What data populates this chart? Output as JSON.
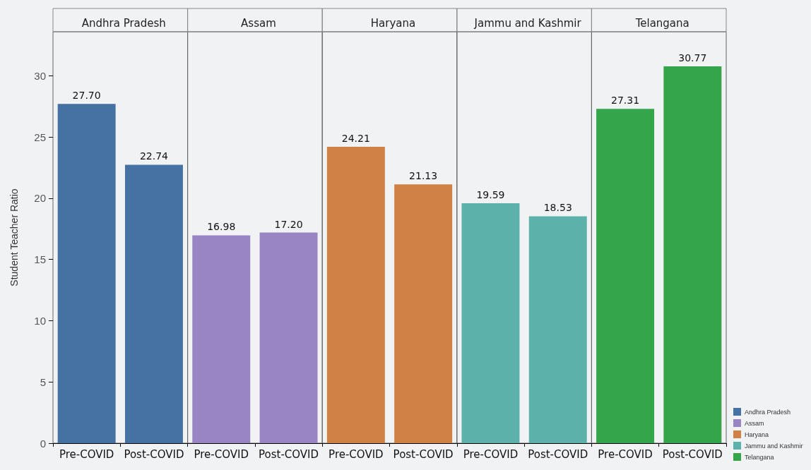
{
  "chart_data": [
    {
      "type": "bar",
      "title": "Andhra Pradesh",
      "ylabel": "Student Teacher Ratio",
      "categories": [
        "Pre-COVID",
        "Post-COVID"
      ],
      "series": [
        {
          "name": "Andhra Pradesh",
          "color": "#4571a3",
          "values": [
            27.7,
            22.74
          ],
          "value_labels": [
            "27.70",
            "22.74"
          ]
        }
      ],
      "ylim": [
        0,
        33.6
      ],
      "yticks": [
        0,
        5,
        10,
        15,
        20,
        25,
        30
      ],
      "grid": false,
      "legend": "bottom right"
    },
    {
      "type": "bar",
      "title": "Assam",
      "categories": [
        "Pre-COVID",
        "Post-COVID"
      ],
      "series": [
        {
          "name": "Assam",
          "color": "#9985c3",
          "values": [
            16.98,
            17.2
          ],
          "value_labels": [
            "16.98",
            "17.20"
          ]
        }
      ],
      "ylim": [
        0,
        33.6
      ],
      "yticks": [
        0,
        5,
        10,
        15,
        20,
        25,
        30
      ],
      "grid": false,
      "legend": "bottom right",
      "tick_labels": "x"
    },
    {
      "type": "bar",
      "title": "Haryana",
      "categories": [
        "Pre-COVID",
        "Post-COVID"
      ],
      "series": [
        {
          "name": "Haryana",
          "color": "#d08145",
          "values": [
            24.21,
            21.13
          ],
          "value_labels": [
            "24.21",
            "21.13"
          ]
        }
      ],
      "ylim": [
        0,
        33.6
      ],
      "yticks": [
        0,
        5,
        10,
        15,
        20,
        25,
        30
      ],
      "grid": false,
      "legend": "bottom right",
      "tick_labels": "x"
    },
    {
      "type": "bar",
      "title": "Jammu and Kashmir",
      "categories": [
        "Pre-COVID",
        "Post-COVID"
      ],
      "series": [
        {
          "name": "Jammu and Kashmir",
          "color": "#5cb2aa",
          "values": [
            19.59,
            18.53
          ],
          "value_labels": [
            "19.59",
            "18.53"
          ]
        }
      ],
      "ylim": [
        0,
        33.6
      ],
      "yticks": [
        0,
        5,
        10,
        15,
        20,
        25,
        30
      ],
      "grid": false,
      "legend": "bottom right",
      "tick_labels": "x"
    },
    {
      "type": "bar",
      "title": "Telangana",
      "categories": [
        "Pre-COVID",
        "Post-COVID"
      ],
      "series": [
        {
          "name": "Telangana",
          "color": "#34a54b",
          "values": [
            27.31,
            30.77
          ],
          "value_labels": [
            "27.31",
            "30.77"
          ]
        }
      ],
      "ylim": [
        0,
        33.6
      ],
      "yticks": [
        0,
        5,
        10,
        15,
        20,
        25,
        30
      ],
      "grid": false,
      "legend": "bottom right",
      "tick_labels": "x"
    }
  ]
}
